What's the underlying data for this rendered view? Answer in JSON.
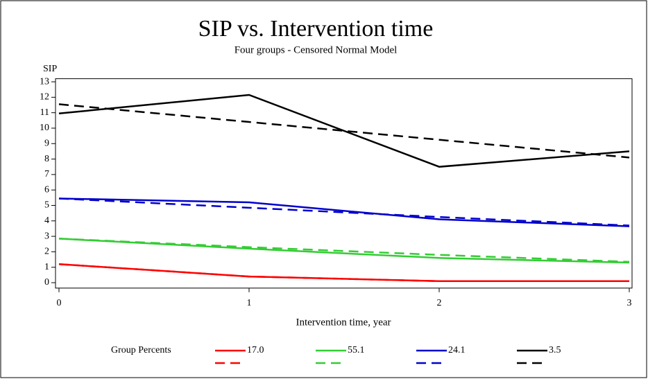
{
  "chart_data": {
    "type": "line",
    "title": "SIP vs. Intervention time",
    "subtitle": "Four groups - Censored Normal Model",
    "ylabel": "SIP",
    "xlabel": "Intervention time, year",
    "legend_title": "Group Percents",
    "x": [
      0,
      1,
      2,
      3
    ],
    "xlim": [
      0,
      3
    ],
    "xticks": [
      0,
      1,
      2,
      3
    ],
    "ylim": [
      -0.35,
      13.2
    ],
    "yticks": [
      0,
      1,
      2,
      3,
      4,
      5,
      6,
      7,
      8,
      9,
      10,
      11,
      12,
      13
    ],
    "series": [
      {
        "name": "17.0",
        "color": "#ff0000",
        "dashed": false,
        "values": [
          1.2,
          0.4,
          0.1,
          0.1
        ]
      },
      {
        "name": "55.1",
        "color": "#33cc33",
        "dashed": false,
        "values": [
          2.85,
          2.2,
          1.6,
          1.3
        ]
      },
      {
        "name": "24.1",
        "color": "#0000cc",
        "dashed": false,
        "values": [
          5.45,
          5.2,
          4.1,
          3.65
        ]
      },
      {
        "name": "3.5",
        "color": "#000000",
        "dashed": false,
        "values": [
          10.95,
          12.15,
          7.5,
          8.5
        ]
      },
      {
        "color": "#ff0000",
        "dashed": true,
        "values": [
          1.2,
          0.4,
          0.1,
          0.1
        ]
      },
      {
        "color": "#33cc33",
        "dashed": true,
        "values": [
          2.85,
          2.3,
          1.8,
          1.35
        ]
      },
      {
        "color": "#0000cc",
        "dashed": true,
        "values": [
          5.45,
          4.85,
          4.25,
          3.7
        ]
      },
      {
        "color": "#000000",
        "dashed": true,
        "values": [
          11.55,
          10.4,
          9.25,
          8.1
        ]
      }
    ]
  }
}
